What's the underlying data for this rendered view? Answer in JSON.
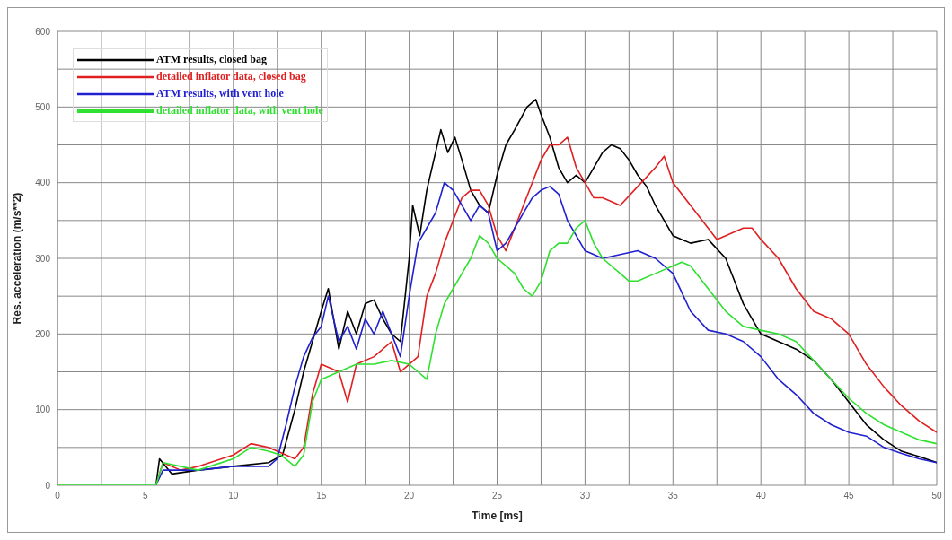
{
  "chart_data": {
    "type": "line",
    "xlabel": "Time [ms]",
    "ylabel": "Res. acceleration (m/s**2)",
    "xlim": [
      0,
      50
    ],
    "ylim": [
      0,
      600
    ],
    "xticks": [
      0,
      {
        "value": 2.5,
        "label": null
      },
      5,
      {
        "value": 7.5,
        "label": null
      },
      10,
      {
        "value": 12.5,
        "label": null
      },
      15,
      {
        "value": 17.5,
        "label": null
      },
      20,
      {
        "value": 22.5,
        "label": null
      },
      25,
      {
        "value": 27.5,
        "label": null
      },
      30,
      {
        "value": 32.5,
        "label": null
      },
      35,
      {
        "value": 37.5,
        "label": null
      },
      40,
      {
        "value": 42.5,
        "label": null
      },
      45,
      {
        "value": 47.5,
        "label": null
      },
      50
    ],
    "yticks": [
      0,
      {
        "value": 50,
        "label": null
      },
      100,
      {
        "value": 150,
        "label": null
      },
      200,
      {
        "value": 250,
        "label": null
      },
      300,
      {
        "value": 350,
        "label": null
      },
      400,
      {
        "value": 450,
        "label": null
      },
      500,
      {
        "value": 550,
        "label": null
      },
      600
    ],
    "grid": true,
    "legend": "top left",
    "marker": "none",
    "line_style": "solid",
    "series": [
      {
        "name": "ATM results, closed bag",
        "color": "#000000",
        "x": [
          5.6,
          5.8,
          6.5,
          8,
          10,
          12,
          12.8,
          13.5,
          14,
          14.5,
          15,
          15.4,
          15.7,
          16,
          16.5,
          17,
          17.5,
          18,
          18.5,
          19,
          19.5,
          20,
          20.2,
          20.6,
          21,
          21.5,
          21.8,
          22.2,
          22.6,
          23,
          23.5,
          24,
          24.5,
          25,
          25.5,
          26,
          26.7,
          27.2,
          27.5,
          28,
          28.5,
          29,
          29.5,
          30,
          30.5,
          31,
          31.5,
          32,
          32.5,
          33,
          33.5,
          34,
          35,
          36,
          37,
          38,
          38.5,
          39,
          40,
          41,
          42,
          43,
          44,
          45,
          46,
          47,
          48,
          49,
          50
        ],
        "values": [
          0,
          35,
          15,
          20,
          25,
          30,
          40,
          100,
          150,
          190,
          230,
          260,
          220,
          180,
          230,
          200,
          240,
          245,
          220,
          200,
          190,
          300,
          370,
          330,
          390,
          440,
          470,
          440,
          460,
          430,
          390,
          370,
          360,
          410,
          450,
          470,
          500,
          510,
          490,
          460,
          420,
          400,
          410,
          400,
          420,
          440,
          450,
          445,
          430,
          410,
          395,
          370,
          330,
          320,
          325,
          300,
          270,
          240,
          200,
          190,
          180,
          165,
          140,
          110,
          80,
          60,
          45,
          38,
          30
        ]
      },
      {
        "name": "detailed inflator data, closed bag",
        "color": "#e02020",
        "x": [
          5.6,
          6,
          7,
          8,
          10,
          11,
          12,
          13,
          13.5,
          14,
          14.5,
          15,
          16,
          16.5,
          17,
          18,
          19,
          19.5,
          20,
          20.5,
          21,
          21.5,
          22,
          22.5,
          23,
          23.5,
          24,
          24.5,
          25,
          25.5,
          26,
          26.5,
          27,
          27.5,
          28,
          28.5,
          29,
          29.5,
          30,
          30.5,
          31,
          32,
          33,
          34,
          34.5,
          35,
          36,
          37,
          37.5,
          38,
          39,
          39.5,
          40,
          41,
          42,
          43,
          44,
          45,
          46,
          47,
          48,
          49,
          50
        ],
        "values": [
          0,
          30,
          20,
          25,
          40,
          55,
          50,
          40,
          35,
          50,
          120,
          160,
          150,
          110,
          160,
          170,
          190,
          150,
          160,
          170,
          250,
          280,
          320,
          350,
          380,
          390,
          390,
          370,
          330,
          310,
          340,
          370,
          400,
          430,
          450,
          450,
          460,
          420,
          400,
          380,
          380,
          370,
          395,
          420,
          435,
          400,
          370,
          340,
          325,
          330,
          340,
          340,
          325,
          300,
          260,
          230,
          220,
          200,
          160,
          130,
          105,
          85,
          70
        ]
      },
      {
        "name": "ATM results, with vent hole",
        "color": "#2020d0",
        "x": [
          5.6,
          6,
          8,
          10,
          12,
          12.5,
          13,
          13.5,
          14,
          14.5,
          15,
          15.4,
          16,
          16.5,
          17,
          17.5,
          18,
          18.5,
          19,
          19.5,
          20,
          20.5,
          21,
          21.5,
          22,
          22.5,
          23,
          23.5,
          24,
          24.5,
          25,
          25.5,
          26,
          26.5,
          27,
          27.5,
          28,
          28.5,
          29,
          29.5,
          30,
          31,
          32,
          33,
          34,
          35,
          36,
          37,
          38,
          39,
          40,
          41,
          42,
          43,
          44,
          45,
          46,
          47,
          48,
          49,
          50
        ],
        "values": [
          0,
          20,
          20,
          25,
          25,
          35,
          80,
          130,
          170,
          195,
          210,
          250,
          190,
          210,
          180,
          220,
          200,
          230,
          200,
          170,
          250,
          320,
          340,
          360,
          400,
          390,
          370,
          350,
          370,
          360,
          310,
          320,
          340,
          360,
          380,
          390,
          395,
          385,
          350,
          330,
          310,
          300,
          305,
          310,
          300,
          280,
          230,
          205,
          200,
          190,
          170,
          140,
          120,
          95,
          80,
          70,
          65,
          50,
          42,
          35,
          30
        ]
      },
      {
        "name": "detailed inflator data, with vent hole",
        "color": "#30e030",
        "x": [
          0,
          5.6,
          6,
          8,
          10,
          11,
          12,
          12.7,
          13.5,
          14,
          14.5,
          15,
          16,
          17,
          18,
          19,
          20,
          20.5,
          21,
          21.5,
          22,
          22.5,
          23,
          23.5,
          24,
          24.5,
          25,
          25.5,
          26,
          26.5,
          27,
          27.5,
          28,
          28.5,
          29,
          29.5,
          30,
          30.5,
          31,
          32,
          32.5,
          33,
          34,
          35,
          35.5,
          36,
          37,
          38,
          39,
          40,
          41,
          42,
          43,
          44,
          45,
          46,
          47,
          48,
          49,
          50
        ],
        "values": [
          0,
          0,
          30,
          20,
          35,
          50,
          45,
          40,
          25,
          40,
          110,
          140,
          150,
          160,
          160,
          165,
          160,
          150,
          140,
          200,
          240,
          260,
          280,
          300,
          330,
          320,
          300,
          290,
          280,
          260,
          250,
          270,
          310,
          320,
          320,
          340,
          350,
          320,
          300,
          280,
          270,
          270,
          280,
          290,
          295,
          290,
          260,
          230,
          210,
          205,
          200,
          190,
          165,
          140,
          115,
          95,
          80,
          70,
          60,
          55
        ]
      }
    ]
  }
}
